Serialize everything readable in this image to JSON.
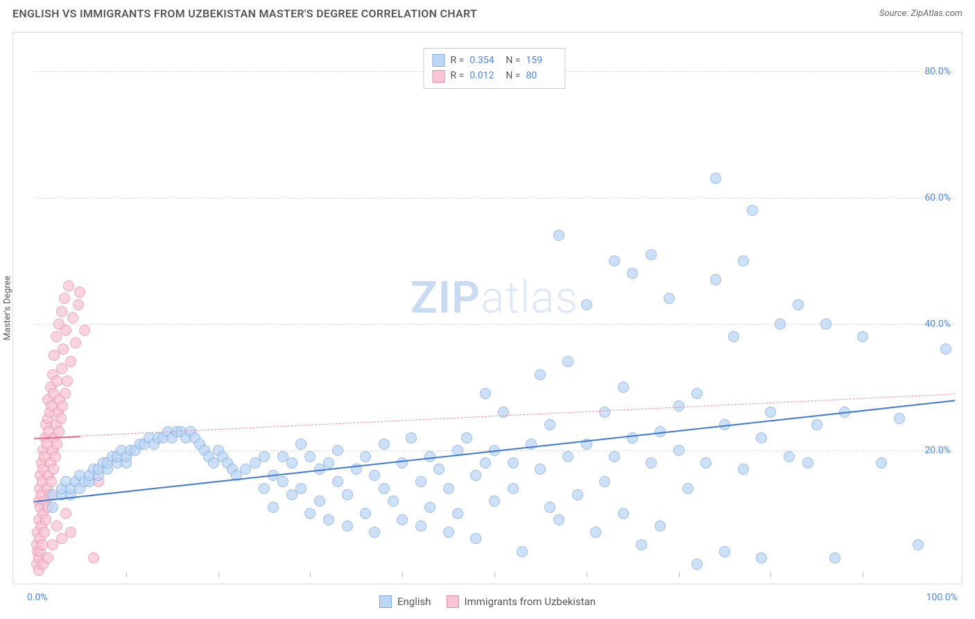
{
  "header": {
    "title": "ENGLISH VS IMMIGRANTS FROM UZBEKISTAN MASTER'S DEGREE CORRELATION CHART",
    "source": "Source: ZipAtlas.com"
  },
  "chart": {
    "type": "scatter",
    "ylabel": "Master's Degree",
    "watermark_a": "ZIP",
    "watermark_b": "atlas",
    "xlim": [
      0,
      100
    ],
    "ylim": [
      0,
      85
    ],
    "x_tick_left": "0.0%",
    "x_tick_right": "100.0%",
    "x_minor_ticks": [
      10,
      20,
      30,
      40,
      50,
      60,
      70,
      80,
      90
    ],
    "y_ticks": [
      {
        "v": 20,
        "label": "20.0%"
      },
      {
        "v": 40,
        "label": "40.0%"
      },
      {
        "v": 60,
        "label": "60.0%"
      },
      {
        "v": 80,
        "label": "80.0%"
      }
    ],
    "grid_color": "#dcdcdc",
    "background_color": "#ffffff",
    "series": {
      "english": {
        "label": "English",
        "fill": "#bcd6f5",
        "stroke": "#7ba8e0",
        "marker_radius": 8,
        "opacity": 0.75,
        "trend": {
          "x1": 0,
          "y1": 12,
          "x2": 100,
          "y2": 28,
          "color": "#3b78d8",
          "width": 2.5,
          "dash": "solid"
        },
        "R_label": "R =",
        "R": "0.354",
        "N_label": "N =",
        "N": "159",
        "points": [
          [
            2,
            11
          ],
          [
            2,
            13
          ],
          [
            3,
            13
          ],
          [
            3,
            14
          ],
          [
            3.5,
            15
          ],
          [
            4,
            13
          ],
          [
            4,
            14
          ],
          [
            4.5,
            15
          ],
          [
            5,
            14
          ],
          [
            5,
            16
          ],
          [
            5.5,
            15
          ],
          [
            6,
            15
          ],
          [
            6,
            16
          ],
          [
            6.5,
            17
          ],
          [
            7,
            16
          ],
          [
            7,
            17
          ],
          [
            7.5,
            18
          ],
          [
            8,
            17
          ],
          [
            8,
            18
          ],
          [
            8.5,
            19
          ],
          [
            9,
            18
          ],
          [
            9,
            19
          ],
          [
            9.5,
            20
          ],
          [
            10,
            18
          ],
          [
            10,
            19
          ],
          [
            10.5,
            20
          ],
          [
            11,
            20
          ],
          [
            11.5,
            21
          ],
          [
            12,
            21
          ],
          [
            12.5,
            22
          ],
          [
            13,
            21
          ],
          [
            13.5,
            22
          ],
          [
            14,
            22
          ],
          [
            14.5,
            23
          ],
          [
            15,
            22
          ],
          [
            15.5,
            23
          ],
          [
            16,
            23
          ],
          [
            16.5,
            22
          ],
          [
            17,
            23
          ],
          [
            17.5,
            22
          ],
          [
            18,
            21
          ],
          [
            18.5,
            20
          ],
          [
            19,
            19
          ],
          [
            19.5,
            18
          ],
          [
            20,
            20
          ],
          [
            20.5,
            19
          ],
          [
            21,
            18
          ],
          [
            21.5,
            17
          ],
          [
            22,
            16
          ],
          [
            23,
            17
          ],
          [
            24,
            18
          ],
          [
            25,
            19
          ],
          [
            25,
            14
          ],
          [
            26,
            16
          ],
          [
            26,
            11
          ],
          [
            27,
            15
          ],
          [
            27,
            19
          ],
          [
            28,
            18
          ],
          [
            28,
            13
          ],
          [
            29,
            14
          ],
          [
            29,
            21
          ],
          [
            30,
            19
          ],
          [
            30,
            10
          ],
          [
            31,
            17
          ],
          [
            31,
            12
          ],
          [
            32,
            18
          ],
          [
            32,
            9
          ],
          [
            33,
            15
          ],
          [
            33,
            20
          ],
          [
            34,
            13
          ],
          [
            34,
            8
          ],
          [
            35,
            17
          ],
          [
            36,
            10
          ],
          [
            36,
            19
          ],
          [
            37,
            16
          ],
          [
            37,
            7
          ],
          [
            38,
            14
          ],
          [
            38,
            21
          ],
          [
            39,
            12
          ],
          [
            40,
            18
          ],
          [
            40,
            9
          ],
          [
            41,
            22
          ],
          [
            42,
            15
          ],
          [
            42,
            8
          ],
          [
            43,
            19
          ],
          [
            43,
            11
          ],
          [
            44,
            17
          ],
          [
            45,
            14
          ],
          [
            45,
            7
          ],
          [
            46,
            20
          ],
          [
            46,
            10
          ],
          [
            47,
            22
          ],
          [
            48,
            16
          ],
          [
            48,
            6
          ],
          [
            49,
            18
          ],
          [
            49,
            29
          ],
          [
            50,
            12
          ],
          [
            50,
            20
          ],
          [
            51,
            26
          ],
          [
            52,
            14
          ],
          [
            52,
            18
          ],
          [
            53,
            4
          ],
          [
            54,
            21
          ],
          [
            55,
            17
          ],
          [
            55,
            32
          ],
          [
            56,
            11
          ],
          [
            56,
            24
          ],
          [
            57,
            9
          ],
          [
            57,
            54
          ],
          [
            58,
            19
          ],
          [
            58,
            34
          ],
          [
            59,
            13
          ],
          [
            60,
            21
          ],
          [
            60,
            43
          ],
          [
            61,
            7
          ],
          [
            62,
            26
          ],
          [
            62,
            15
          ],
          [
            63,
            19
          ],
          [
            63,
            50
          ],
          [
            64,
            10
          ],
          [
            64,
            30
          ],
          [
            65,
            22
          ],
          [
            65,
            48
          ],
          [
            66,
            5
          ],
          [
            67,
            18
          ],
          [
            67,
            51
          ],
          [
            68,
            23
          ],
          [
            68,
            8
          ],
          [
            69,
            44
          ],
          [
            70,
            20
          ],
          [
            70,
            27
          ],
          [
            71,
            14
          ],
          [
            72,
            29
          ],
          [
            72,
            2
          ],
          [
            73,
            18
          ],
          [
            74,
            47
          ],
          [
            74,
            63
          ],
          [
            75,
            24
          ],
          [
            75,
            4
          ],
          [
            76,
            38
          ],
          [
            77,
            17
          ],
          [
            77,
            50
          ],
          [
            78,
            58
          ],
          [
            79,
            22
          ],
          [
            79,
            3
          ],
          [
            80,
            26
          ],
          [
            81,
            40
          ],
          [
            82,
            19
          ],
          [
            83,
            43
          ],
          [
            84,
            18
          ],
          [
            85,
            24
          ],
          [
            86,
            40
          ],
          [
            87,
            3
          ],
          [
            88,
            26
          ],
          [
            90,
            38
          ],
          [
            92,
            18
          ],
          [
            94,
            25
          ],
          [
            96,
            5
          ],
          [
            99,
            36
          ]
        ]
      },
      "uzbek": {
        "label": "Immigrants from Uzbekistan",
        "fill": "#f7c5d4",
        "stroke": "#e88aa7",
        "marker_radius": 8,
        "opacity": 0.75,
        "trend": {
          "x1": 0,
          "y1": 22,
          "x2": 100,
          "y2": 29,
          "color": "#e88aa7",
          "width": 1.5,
          "dash": "dashed"
        },
        "solid_trend": {
          "x1": 0,
          "y1": 22,
          "x2": 5,
          "y2": 22.3,
          "color": "#e06b8f",
          "width": 2.5,
          "dash": "solid"
        },
        "R_label": "R =",
        "R": "0.012",
        "N_label": "N =",
        "N": "80",
        "points": [
          [
            0.3,
            2
          ],
          [
            0.3,
            5
          ],
          [
            0.4,
            4
          ],
          [
            0.4,
            7
          ],
          [
            0.5,
            3
          ],
          [
            0.5,
            9
          ],
          [
            0.5,
            12
          ],
          [
            0.6,
            6
          ],
          [
            0.6,
            14
          ],
          [
            0.7,
            4
          ],
          [
            0.7,
            11
          ],
          [
            0.7,
            16
          ],
          [
            0.8,
            8
          ],
          [
            0.8,
            13
          ],
          [
            0.8,
            18
          ],
          [
            0.9,
            5
          ],
          [
            0.9,
            15
          ],
          [
            1.0,
            10
          ],
          [
            1.0,
            17
          ],
          [
            1.0,
            20
          ],
          [
            1.1,
            7
          ],
          [
            1.1,
            19
          ],
          [
            1.2,
            12
          ],
          [
            1.2,
            22
          ],
          [
            1.3,
            9
          ],
          [
            1.3,
            24
          ],
          [
            1.4,
            14
          ],
          [
            1.4,
            21
          ],
          [
            1.5,
            11
          ],
          [
            1.5,
            25
          ],
          [
            1.5,
            28
          ],
          [
            1.6,
            16
          ],
          [
            1.6,
            23
          ],
          [
            1.7,
            13
          ],
          [
            1.7,
            26
          ],
          [
            1.8,
            18
          ],
          [
            1.8,
            30
          ],
          [
            1.9,
            15
          ],
          [
            1.9,
            27
          ],
          [
            2.0,
            20
          ],
          [
            2.0,
            32
          ],
          [
            2.1,
            17
          ],
          [
            2.1,
            29
          ],
          [
            2.2,
            22
          ],
          [
            2.2,
            35
          ],
          [
            2.3,
            19
          ],
          [
            2.4,
            24
          ],
          [
            2.4,
            38
          ],
          [
            2.5,
            21
          ],
          [
            2.5,
            31
          ],
          [
            2.6,
            26
          ],
          [
            2.7,
            23
          ],
          [
            2.7,
            40
          ],
          [
            2.8,
            28
          ],
          [
            2.9,
            25
          ],
          [
            3.0,
            33
          ],
          [
            3.0,
            42
          ],
          [
            3.1,
            27
          ],
          [
            3.2,
            36
          ],
          [
            3.3,
            44
          ],
          [
            3.4,
            29
          ],
          [
            3.5,
            39
          ],
          [
            3.6,
            31
          ],
          [
            3.8,
            46
          ],
          [
            4.0,
            34
          ],
          [
            4.2,
            41
          ],
          [
            4.5,
            37
          ],
          [
            4.8,
            43
          ],
          [
            5.0,
            45
          ],
          [
            5.5,
            39
          ],
          [
            0.5,
            1
          ],
          [
            1.0,
            2
          ],
          [
            1.5,
            3
          ],
          [
            2.0,
            5
          ],
          [
            2.5,
            8
          ],
          [
            3.0,
            6
          ],
          [
            3.5,
            10
          ],
          [
            4.0,
            7
          ],
          [
            6.5,
            3
          ],
          [
            7.0,
            15
          ]
        ]
      }
    },
    "legend_top_labels": {
      "R": "R =",
      "N": "N ="
    },
    "legend_bottom": [
      {
        "key": "english"
      },
      {
        "key": "uzbek"
      }
    ]
  }
}
